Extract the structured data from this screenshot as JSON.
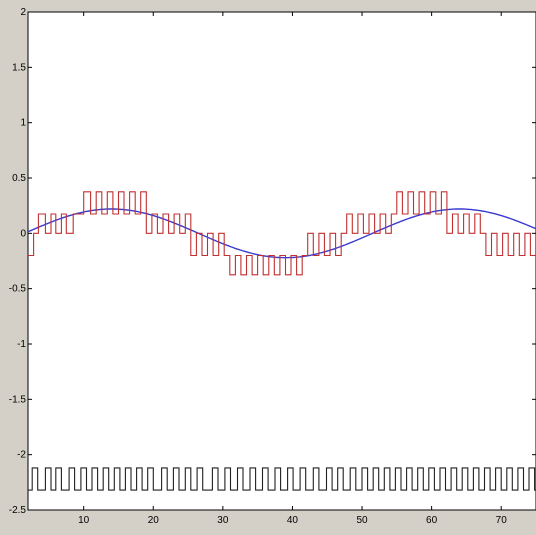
{
  "window": {
    "background": "#d4d0c8"
  },
  "chart_data": {
    "type": "line",
    "title": "",
    "xlabel": "",
    "ylabel": "",
    "xlim": [
      2,
      75
    ],
    "ylim": [
      -2.5,
      2
    ],
    "grid": false,
    "xticks": [
      10,
      20,
      30,
      40,
      50,
      60,
      70
    ],
    "yticks": [
      2,
      1.5,
      1,
      0.5,
      0,
      -0.5,
      -1,
      -1.5,
      -2,
      -2.5
    ],
    "xtick_labels": [
      "10",
      "20",
      "30",
      "40",
      "50",
      "60",
      "70"
    ],
    "ytick_labels": [
      "2",
      "1.5",
      "1",
      "0.5",
      "0",
      "-0.5",
      "-1",
      "-1.5",
      "-2",
      "-2.5"
    ],
    "series": [
      {
        "style": "smooth sine",
        "color": "#3a3ad0",
        "amplitude": 0.22,
        "period": 50,
        "phase_zero_crossing_x": 1.5
      },
      {
        "style": "staircase PWM",
        "color": "#c03030",
        "levels": [
          -0.375,
          -0.2,
          0,
          0.175,
          0.375
        ],
        "edges_x": [
          2,
          2.8,
          3.5,
          4.5,
          5.3,
          6.0,
          6.8,
          7.5,
          8.5,
          10,
          11,
          11.8,
          12.6,
          13.4,
          14.2,
          15,
          15.8,
          16.6,
          17.4,
          18.2,
          19,
          19.8,
          20.6,
          21.4,
          22.2,
          23,
          23.8,
          24.6,
          25.4,
          26.2,
          27,
          27.8,
          28.6,
          29.4,
          30.2,
          31,
          31.8,
          32.6,
          33.4,
          34.2,
          35,
          35.8,
          36.6,
          37.4,
          38.2,
          39,
          39.8,
          40.6,
          41.4,
          42.2,
          43,
          43.8,
          44.6,
          45.4,
          46.2,
          47,
          47.8,
          48.6,
          49.4,
          50.2,
          51,
          51.8,
          52.6,
          53.4,
          54.2,
          55,
          55.8,
          56.6,
          57.4,
          58.2,
          59,
          59.8,
          60.6,
          61.4,
          62.2,
          63,
          63.8,
          64.6,
          65.4,
          66.2,
          67,
          67.8,
          68.6,
          69.4,
          70.2,
          71,
          71.8,
          72.6,
          73.4,
          74.2,
          75
        ],
        "step_values": [
          -0.2,
          0,
          0.175,
          0,
          0.175,
          0,
          0.175,
          0,
          0.175,
          0.375,
          0.175,
          0.375,
          0.175,
          0.375,
          0.175,
          0.375,
          0.175,
          0.375,
          0.175,
          0.375,
          0,
          0.175,
          0,
          0.175,
          0,
          0.175,
          0,
          0.175,
          -0.2,
          0,
          -0.2,
          0,
          -0.2,
          0,
          -0.2,
          -0.375,
          -0.2,
          -0.375,
          -0.2,
          -0.375,
          -0.2,
          -0.375,
          -0.2,
          -0.375,
          -0.2,
          -0.375,
          -0.2,
          -0.375,
          -0.2,
          0,
          -0.2,
          0,
          -0.2,
          0,
          -0.2,
          0,
          0.175,
          0,
          0.175,
          0,
          0.175,
          0,
          0.175,
          0,
          0.175,
          0.375,
          0.175,
          0.375,
          0.175,
          0.375,
          0.175,
          0.375,
          0.175,
          0.375,
          0,
          0.175,
          0,
          0.175,
          0,
          0.175,
          0,
          -0.2,
          0,
          -0.2,
          0,
          -0.2,
          0,
          -0.2,
          0,
          -0.2
        ]
      },
      {
        "style": "square pulse train",
        "color": "#202020",
        "levels": [
          -2.32,
          -2.12
        ],
        "pulse_high_edges_x": [
          2.6,
          3.4,
          4.5,
          5.3,
          6.0,
          6.8,
          7.9,
          8.7,
          9.6,
          10.4,
          11.2,
          12.0,
          12.8,
          13.6,
          14.4,
          15.2,
          16.0,
          16.8,
          17.6,
          18.4,
          19.2,
          20.0,
          21.2,
          22.0,
          22.9,
          23.7,
          24.6,
          25.4,
          26.3,
          27.1,
          28.5,
          29.3,
          30.3,
          31.1,
          32.1,
          32.9,
          33.9,
          34.7,
          35.7,
          36.5,
          37.5,
          38.3,
          39.3,
          40.1,
          41.1,
          41.9,
          43.0,
          43.8,
          44.9,
          45.7,
          46.5,
          47.3,
          48.3,
          49.1,
          50.0,
          50.8,
          51.6,
          52.4,
          53.2,
          54.0,
          54.8,
          55.6,
          56.4,
          57.2,
          58.0,
          58.8,
          59.6,
          60.4,
          61.2,
          62.0,
          62.8,
          63.6,
          64.4,
          65.2,
          66.0,
          66.8,
          67.6,
          68.4,
          69.2,
          70.0,
          70.8,
          71.6,
          72.4,
          73.2,
          74.0,
          74.8
        ]
      }
    ]
  }
}
